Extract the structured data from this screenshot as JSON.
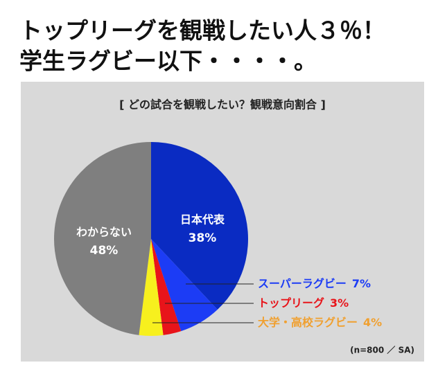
{
  "chart_data": {
    "type": "pie",
    "headline": [
      "トップリーグを観戦したい人３％！",
      "学生ラグビー以下・・・・。"
    ],
    "title": "[ どの試合を観戦したい？観戦意向割合 ]",
    "note": "(n=800 ／ SA)",
    "categories": [
      "日本代表",
      "スーパーラグビー",
      "トップリーグ",
      "大学・高校ラグビー",
      "わからない"
    ],
    "values": [
      38,
      7,
      3,
      4,
      48
    ],
    "value_labels": [
      "38%",
      "7%",
      "3%",
      "4%",
      "48%"
    ],
    "colors": [
      "#0a2bc2",
      "#1c3cf5",
      "#e8141a",
      "#f7f01e",
      "#7f7f7f"
    ],
    "label_colors": [
      "#ffffff",
      "#1c3cf5",
      "#e8141a",
      "#f0a030",
      "#ffffff"
    ]
  }
}
